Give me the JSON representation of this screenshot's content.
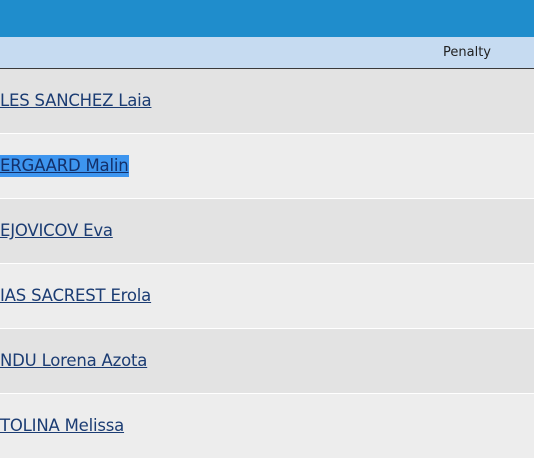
{
  "table": {
    "header": [
      "Penalty"
    ],
    "rows": [
      [
        "LES SANCHEZ Laia"
      ],
      [
        "ERGAARD Malin"
      ],
      [
        "EJOVICOV Eva"
      ],
      [
        "IAS SACREST Erola"
      ],
      [
        "NDU Lorena Azota"
      ],
      [
        "TOLINA Melissa"
      ]
    ]
  }
}
